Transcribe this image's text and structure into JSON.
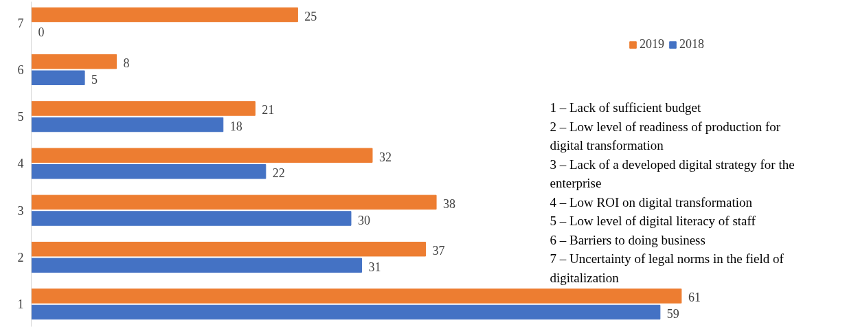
{
  "chart_data": {
    "type": "bar",
    "orientation": "horizontal",
    "categories": [
      "7",
      "6",
      "5",
      "4",
      "3",
      "2",
      "1"
    ],
    "series": [
      {
        "name": "2019",
        "color": "#ed7d31",
        "values": [
          25,
          8,
          21,
          32,
          38,
          37,
          61
        ]
      },
      {
        "name": "2018",
        "color": "#4472c4",
        "values": [
          0,
          5,
          18,
          22,
          30,
          31,
          59
        ]
      }
    ],
    "data_labels": true,
    "legend": "top right",
    "grid": false,
    "tick_labels": "y",
    "annotations": [
      "1 – Lack of sufficient budget",
      "2 – Low level of readiness of production for digital transformation",
      "3 – Lack of a developed digital strategy for the enterprise",
      "4 – Low ROI on digital transformation",
      "5 – Low level of digital literacy of staff",
      "6 – Barriers to doing business",
      "7 – Uncertainty of legal norms in the field of digitalization"
    ]
  }
}
